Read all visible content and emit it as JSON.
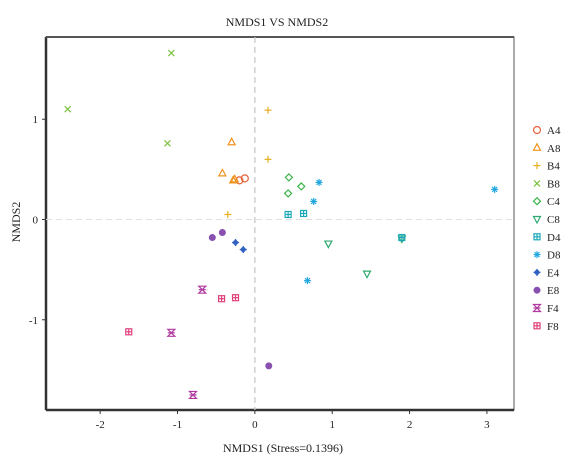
{
  "chart_data": {
    "type": "scatter",
    "title": "NMDS1 VS NMDS2",
    "xlabel": "NMDS1 (Stress=0.1396)",
    "ylabel": "NMDS2",
    "xlim": [
      -2.7,
      3.35
    ],
    "ylim": [
      -1.9,
      1.82
    ],
    "xticks": [
      -2,
      -1,
      0,
      1,
      2,
      3
    ],
    "yticks": [
      -1,
      0,
      1
    ],
    "zero_lines": true,
    "legend_position": "right",
    "series": [
      {
        "name": "A4",
        "color": "#e8643c",
        "marker": "circle",
        "points": [
          [
            -0.2,
            0.39
          ],
          [
            -0.13,
            0.41
          ]
        ]
      },
      {
        "name": "A8",
        "color": "#f0941e",
        "marker": "triangle-up",
        "points": [
          [
            -0.3,
            0.77
          ],
          [
            -0.42,
            0.46
          ],
          [
            -0.28,
            0.39
          ],
          [
            -0.26,
            0.4
          ]
        ]
      },
      {
        "name": "B4",
        "color": "#e8b020",
        "marker": "plus",
        "points": [
          [
            0.17,
            1.09
          ],
          [
            0.17,
            0.6
          ],
          [
            -0.35,
            0.05
          ]
        ]
      },
      {
        "name": "B8",
        "color": "#7ec13f",
        "marker": "x",
        "points": [
          [
            -1.08,
            1.66
          ],
          [
            -2.42,
            1.1
          ],
          [
            -1.13,
            0.76
          ]
        ]
      },
      {
        "name": "C4",
        "color": "#3cb44b",
        "marker": "diamond",
        "points": [
          [
            0.44,
            0.42
          ],
          [
            0.6,
            0.33
          ],
          [
            0.43,
            0.26
          ]
        ]
      },
      {
        "name": "C8",
        "color": "#2ea870",
        "marker": "triangle-down",
        "points": [
          [
            0.95,
            -0.24
          ],
          [
            1.45,
            -0.54
          ],
          [
            1.9,
            -0.19
          ]
        ]
      },
      {
        "name": "D4",
        "color": "#1aa8b8",
        "marker": "square-x",
        "points": [
          [
            0.43,
            0.05
          ],
          [
            0.63,
            0.06
          ],
          [
            1.9,
            -0.18
          ]
        ]
      },
      {
        "name": "D8",
        "color": "#22a8e0",
        "marker": "star",
        "points": [
          [
            0.83,
            0.37
          ],
          [
            0.76,
            0.18
          ],
          [
            3.1,
            0.3
          ],
          [
            0.68,
            -0.61
          ]
        ]
      },
      {
        "name": "E4",
        "color": "#3060c0",
        "marker": "cross",
        "points": [
          [
            -0.25,
            -0.23
          ],
          [
            -0.15,
            -0.3
          ]
        ]
      },
      {
        "name": "E8",
        "color": "#8a50b0",
        "marker": "circle-filled",
        "points": [
          [
            -0.55,
            -0.18
          ],
          [
            -0.42,
            -0.13
          ],
          [
            0.18,
            -1.46
          ]
        ]
      },
      {
        "name": "F4",
        "color": "#b03aa0",
        "marker": "hourglass",
        "points": [
          [
            -0.68,
            -0.7
          ],
          [
            -1.08,
            -1.13
          ],
          [
            -0.8,
            -1.75
          ]
        ]
      },
      {
        "name": "F8",
        "color": "#e0407a",
        "marker": "square-x",
        "points": [
          [
            -0.25,
            -0.78
          ],
          [
            -0.43,
            -0.79
          ],
          [
            -1.63,
            -1.12
          ]
        ]
      }
    ]
  }
}
